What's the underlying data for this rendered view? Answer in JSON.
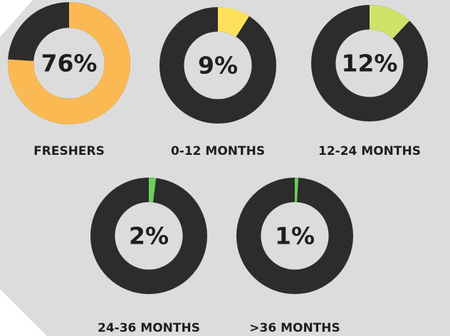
{
  "chart_data": {
    "type": "donut",
    "categories": [
      "FRESHERS",
      "0-12 MONTHS",
      "12-24 MONTHS",
      "24-36 MONTHS",
      ">36 MONTHS"
    ],
    "values": [
      76,
      9,
      12,
      2,
      1
    ],
    "value_labels": [
      "76%",
      "9%",
      "12%",
      "2%",
      "1%"
    ],
    "colors": [
      "#fbb954",
      "#fde15b",
      "#cfe36a",
      "#6ccf5a",
      "#6ccf5a"
    ],
    "rest_color": "#2c2c2c"
  }
}
